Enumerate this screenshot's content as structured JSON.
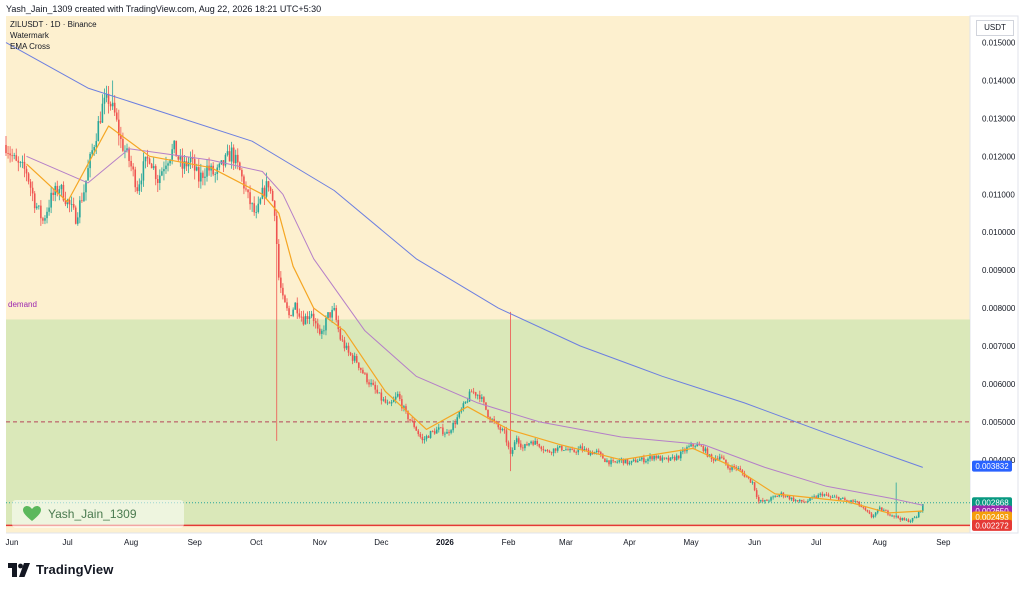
{
  "header": {
    "created_by": "Yash_Jain_1309 created with TradingView.com, Aug 22, 2026 18:21 UTC+5:30"
  },
  "legend": {
    "symbol": "ZILUSDT · 1D · Binance",
    "indicator1": "Watermark",
    "indicator2": "EMA Cross"
  },
  "zone_label": "demand",
  "unit": "USDT",
  "watermark": {
    "text": "Yash_Jain_1309",
    "icon": "green-heart-icon"
  },
  "brand": {
    "name": "TradingView",
    "icon": "tradingview-logo-icon"
  },
  "colors": {
    "background": "#fdf0cf",
    "demand_zone": "#d4e6b5",
    "candle_up": "#26a69a",
    "candle_down": "#ef5350",
    "ema_fast": "#f5a623",
    "ema_mid": "#b57fc8",
    "ema_slow": "#6c7fe0",
    "support": "#e53935",
    "resistance": "#b7465a",
    "current_price": "#26a69a"
  },
  "chart_data": {
    "type": "candlestick",
    "symbol": "ZILUSDT",
    "timeframe": "1D",
    "exchange": "Binance",
    "ylim": [
      0.00207,
      0.0157
    ],
    "y_ticks": [
      "0.004000",
      "0.005000",
      "0.006000",
      "0.007000",
      "0.008000",
      "0.009000",
      "0.010000",
      "0.011000",
      "0.012000",
      "0.013000",
      "0.014000",
      "0.015000"
    ],
    "x_ticks": [
      "Jun",
      "Jul",
      "Aug",
      "Sep",
      "Oct",
      "Nov",
      "Dec",
      "2026",
      "Feb",
      "Mar",
      "Apr",
      "May",
      "Jun",
      "Jul",
      "Aug",
      "Sep"
    ],
    "x_tick_days": [
      0,
      30,
      61,
      92,
      122,
      153,
      183,
      214,
      245,
      273,
      304,
      334,
      365,
      395,
      426,
      457
    ],
    "x_domain_days": [
      0,
      470
    ],
    "price_path": [
      [
        0,
        0.0123
      ],
      [
        5,
        0.0118
      ],
      [
        10,
        0.0116
      ],
      [
        14,
        0.0108
      ],
      [
        18,
        0.0103
      ],
      [
        22,
        0.0109
      ],
      [
        26,
        0.0112
      ],
      [
        30,
        0.0108
      ],
      [
        34,
        0.0104
      ],
      [
        38,
        0.0111
      ],
      [
        41,
        0.0119
      ],
      [
        44,
        0.0126
      ],
      [
        47,
        0.0133
      ],
      [
        50,
        0.0135
      ],
      [
        53,
        0.0131
      ],
      [
        56,
        0.0124
      ],
      [
        60,
        0.0119
      ],
      [
        64,
        0.0112
      ],
      [
        67,
        0.0117
      ],
      [
        70,
        0.012
      ],
      [
        74,
        0.0114
      ],
      [
        78,
        0.0119
      ],
      [
        82,
        0.0122
      ],
      [
        86,
        0.0117
      ],
      [
        90,
        0.0119
      ],
      [
        94,
        0.0114
      ],
      [
        98,
        0.0117
      ],
      [
        102,
        0.0115
      ],
      [
        106,
        0.0118
      ],
      [
        110,
        0.0121
      ],
      [
        114,
        0.0116
      ],
      [
        118,
        0.0109
      ],
      [
        122,
        0.0104
      ],
      [
        125,
        0.011
      ],
      [
        128,
        0.0113
      ],
      [
        131,
        0.0106
      ],
      [
        133,
        0.0088
      ],
      [
        135,
        0.0082
      ],
      [
        138,
        0.0078
      ],
      [
        141,
        0.0081
      ],
      [
        145,
        0.0077
      ],
      [
        149,
        0.0079
      ],
      [
        153,
        0.0072
      ],
      [
        157,
        0.0078
      ],
      [
        160,
        0.0079
      ],
      [
        163,
        0.0072
      ],
      [
        167,
        0.0068
      ],
      [
        171,
        0.0066
      ],
      [
        175,
        0.0062
      ],
      [
        179,
        0.0059
      ],
      [
        183,
        0.0056
      ],
      [
        187,
        0.0054
      ],
      [
        191,
        0.0057
      ],
      [
        195,
        0.0052
      ],
      [
        199,
        0.0049
      ],
      [
        203,
        0.0045
      ],
      [
        207,
        0.0047
      ],
      [
        211,
        0.0048
      ],
      [
        215,
        0.0047
      ],
      [
        219,
        0.005
      ],
      [
        223,
        0.0054
      ],
      [
        227,
        0.0058
      ],
      [
        231,
        0.0057
      ],
      [
        235,
        0.0052
      ],
      [
        239,
        0.0049
      ],
      [
        243,
        0.0047
      ],
      [
        246,
        0.0041
      ],
      [
        249,
        0.0046
      ],
      [
        252,
        0.0043
      ],
      [
        256,
        0.0045
      ],
      [
        260,
        0.0044
      ],
      [
        264,
        0.0042
      ],
      [
        268,
        0.0043
      ],
      [
        272,
        0.0043
      ],
      [
        276,
        0.0042
      ],
      [
        280,
        0.0043
      ],
      [
        284,
        0.0042
      ],
      [
        288,
        0.0042
      ],
      [
        292,
        0.004
      ],
      [
        296,
        0.0039
      ],
      [
        300,
        0.004
      ],
      [
        304,
        0.0039
      ],
      [
        308,
        0.004
      ],
      [
        312,
        0.004
      ],
      [
        316,
        0.0041
      ],
      [
        320,
        0.004
      ],
      [
        324,
        0.004
      ],
      [
        328,
        0.0041
      ],
      [
        332,
        0.0043
      ],
      [
        336,
        0.0044
      ],
      [
        340,
        0.0043
      ],
      [
        344,
        0.004
      ],
      [
        348,
        0.0041
      ],
      [
        352,
        0.0038
      ],
      [
        356,
        0.0038
      ],
      [
        360,
        0.0036
      ],
      [
        364,
        0.0034
      ],
      [
        367,
        0.0029
      ],
      [
        370,
        0.0029
      ],
      [
        374,
        0.003
      ],
      [
        378,
        0.0031
      ],
      [
        382,
        0.003
      ],
      [
        386,
        0.0029
      ],
      [
        390,
        0.0029
      ],
      [
        394,
        0.003
      ],
      [
        398,
        0.0031
      ],
      [
        402,
        0.003
      ],
      [
        406,
        0.003
      ],
      [
        410,
        0.0029
      ],
      [
        414,
        0.0029
      ],
      [
        418,
        0.0027
      ],
      [
        422,
        0.0025
      ],
      [
        426,
        0.0027
      ],
      [
        430,
        0.0026
      ],
      [
        434,
        0.0025
      ],
      [
        438,
        0.0024
      ],
      [
        441,
        0.0024
      ],
      [
        444,
        0.0025
      ],
      [
        447,
        0.0028
      ]
    ],
    "spikes": [
      {
        "day": 132,
        "low": 0.0045
      },
      {
        "day": 246,
        "high": 0.0079,
        "low": 0.0037
      },
      {
        "day": 434,
        "high": 0.0034
      },
      {
        "day": 52,
        "high": 0.014
      }
    ],
    "ema_fast_path": [
      [
        10,
        0.0118
      ],
      [
        30,
        0.0108
      ],
      [
        50,
        0.0128
      ],
      [
        70,
        0.012
      ],
      [
        100,
        0.0117
      ],
      [
        125,
        0.011
      ],
      [
        133,
        0.0105
      ],
      [
        140,
        0.0091
      ],
      [
        150,
        0.008
      ],
      [
        165,
        0.0074
      ],
      [
        185,
        0.0058
      ],
      [
        205,
        0.0048
      ],
      [
        225,
        0.0054
      ],
      [
        245,
        0.0048
      ],
      [
        270,
        0.0044
      ],
      [
        300,
        0.004
      ],
      [
        335,
        0.0043
      ],
      [
        355,
        0.0038
      ],
      [
        375,
        0.0031
      ],
      [
        410,
        0.0029
      ],
      [
        430,
        0.0026
      ],
      [
        447,
        0.00265
      ]
    ],
    "ema_mid_path": [
      [
        10,
        0.012
      ],
      [
        40,
        0.0113
      ],
      [
        60,
        0.0122
      ],
      [
        100,
        0.0119
      ],
      [
        125,
        0.0116
      ],
      [
        135,
        0.011
      ],
      [
        150,
        0.0093
      ],
      [
        175,
        0.0074
      ],
      [
        200,
        0.0062
      ],
      [
        230,
        0.0055
      ],
      [
        260,
        0.005
      ],
      [
        300,
        0.0046
      ],
      [
        340,
        0.0044
      ],
      [
        370,
        0.0038
      ],
      [
        400,
        0.0033
      ],
      [
        430,
        0.003
      ],
      [
        447,
        0.0028
      ]
    ],
    "ema_slow_path": [
      [
        0,
        0.015
      ],
      [
        40,
        0.0138
      ],
      [
        80,
        0.0131
      ],
      [
        120,
        0.0124
      ],
      [
        160,
        0.0111
      ],
      [
        200,
        0.0093
      ],
      [
        240,
        0.008
      ],
      [
        280,
        0.007
      ],
      [
        320,
        0.0062
      ],
      [
        360,
        0.0055
      ],
      [
        400,
        0.0047
      ],
      [
        447,
        0.0038
      ]
    ],
    "demand_zone": [
      0.00227,
      0.0077
    ],
    "resistance_level": 0.005,
    "support_level": 0.00227,
    "current_level": 0.002868,
    "price_labels": [
      {
        "value": 0.003832,
        "label": "0.003832",
        "color": "#2962ff"
      },
      {
        "value": 0.002868,
        "label": "0.002868",
        "color": "#089981"
      },
      {
        "value": 0.00265,
        "label": "0.002650",
        "color": "#9c27b0"
      },
      {
        "value": 0.002493,
        "label": "0.002493",
        "color": "#f59e0b"
      },
      {
        "value": 0.002272,
        "label": "0.002272",
        "color": "#e53935"
      }
    ]
  }
}
